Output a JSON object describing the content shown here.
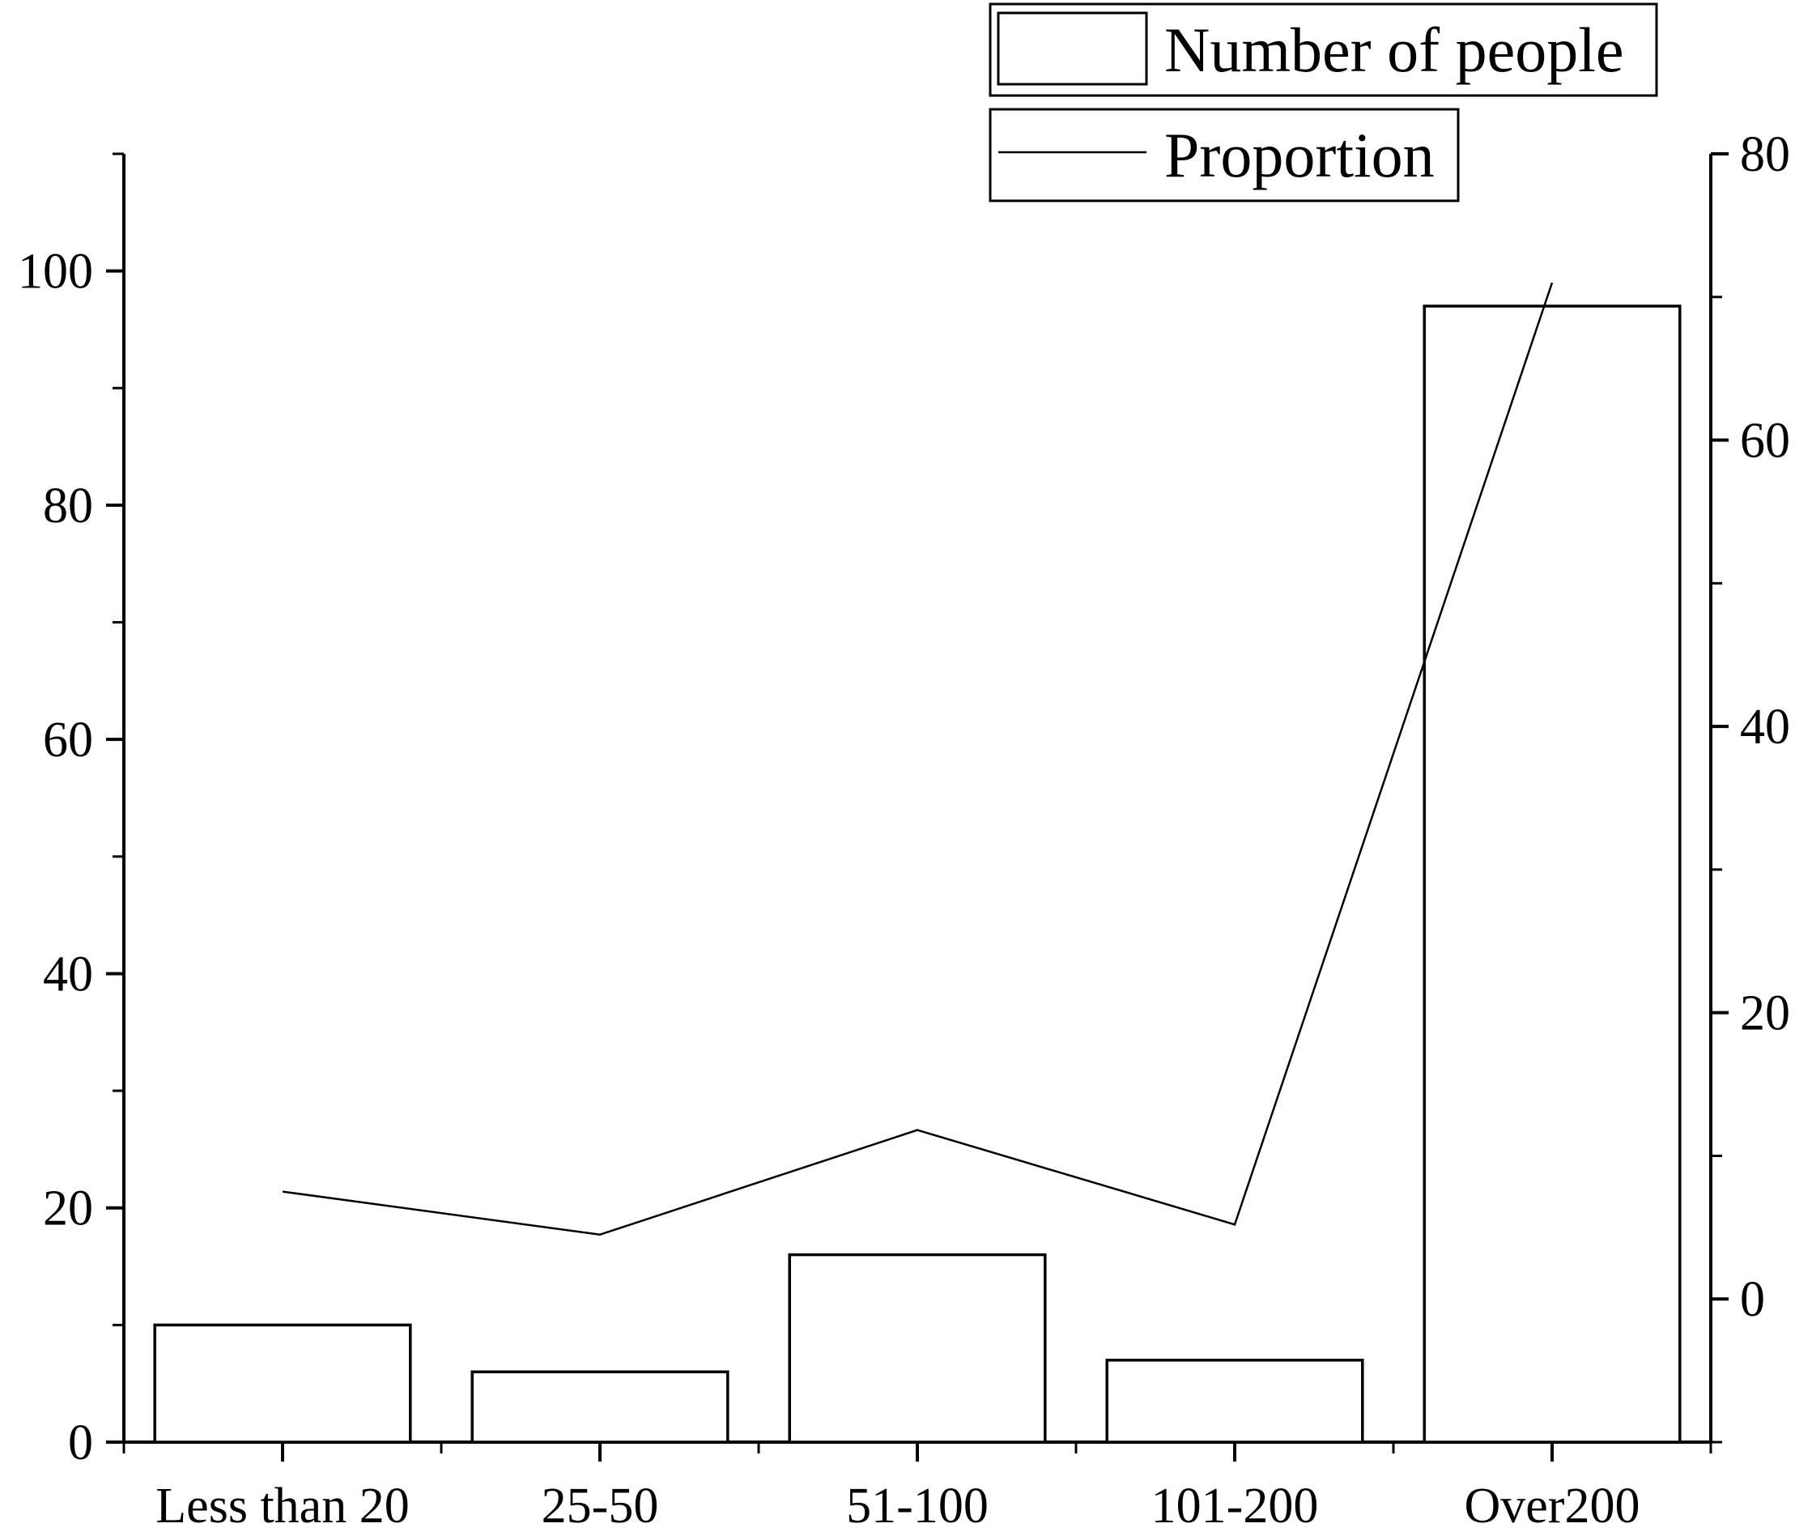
{
  "chart_data": {
    "type": "bar",
    "categories": [
      "Less than 20",
      "25-50",
      "51-100",
      "101-200",
      "Over200"
    ],
    "series": [
      {
        "name": "Number of people",
        "type": "bar",
        "axis": "left",
        "values": [
          10,
          6,
          16,
          7,
          97
        ]
      },
      {
        "name": "Proportion",
        "type": "line",
        "axis": "right",
        "values": [
          7.5,
          4.5,
          11.8,
          5.2,
          71
        ]
      }
    ],
    "y_left": {
      "ylim": [
        0,
        110
      ],
      "ticks": [
        0,
        20,
        40,
        60,
        80,
        100
      ],
      "minor_step": 10
    },
    "y_right": {
      "ylim": [
        -10,
        80
      ],
      "ticks": [
        0,
        20,
        40,
        60,
        80
      ],
      "minor_step": 10
    },
    "xlabel": "",
    "ylabel": "",
    "legend_position": "top-right",
    "grid": false
  }
}
